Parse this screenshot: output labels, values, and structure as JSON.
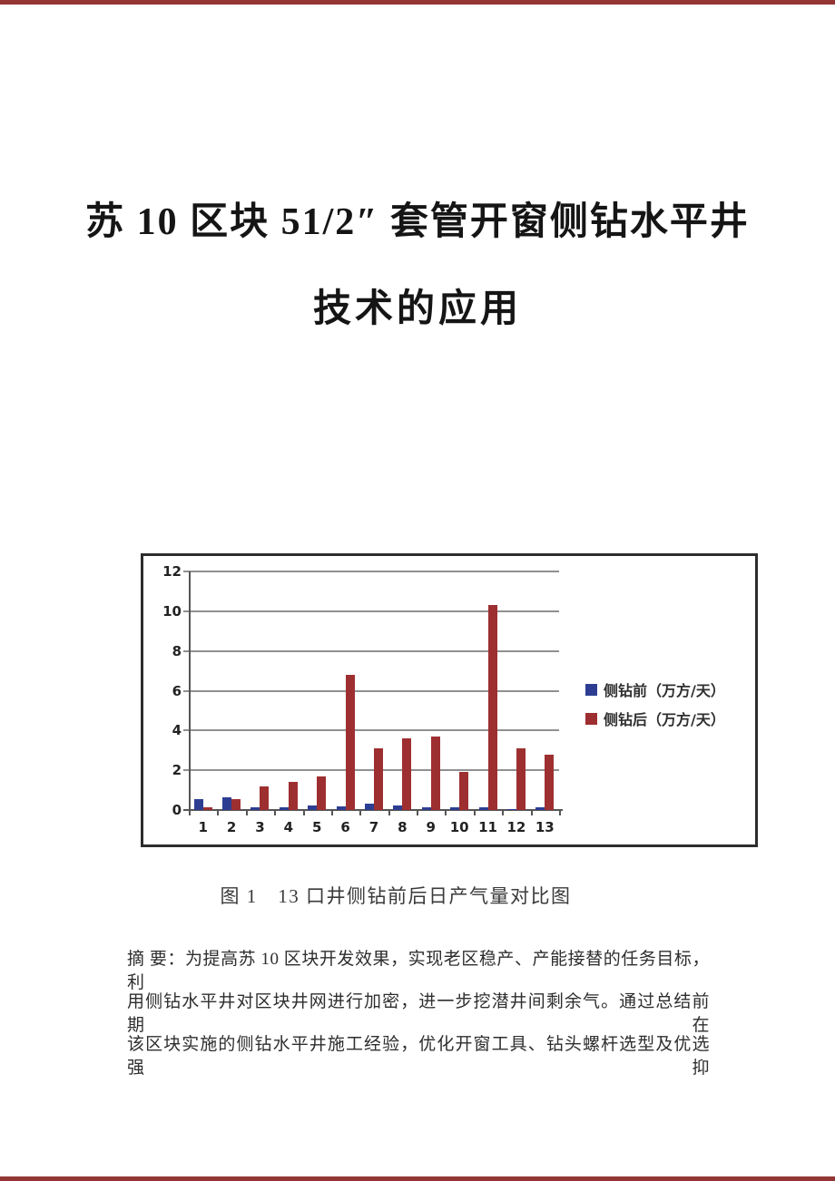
{
  "page": {
    "border_color": "#943634"
  },
  "document": {
    "title_line1": "苏 10 区块 51/2″ 套管开窗侧钻水平井",
    "title_line2": "技术的应用",
    "figure_caption": "图 1　13 口井侧钻前后日产气量对比图",
    "abstract_lines": [
      "摘 要：为提高苏 10 区块开发效果，实现老区稳产、产能接替的任务目标，利",
      "用侧钻水平井对区块井网进行加密，进一步挖潜井间剩余气。通过总结前期在",
      "该区块实施的侧钻水平井施工经验，优化开窗工具、钻头螺杆选型及优选强抑"
    ]
  },
  "chart_data": {
    "type": "bar",
    "categories": [
      "1",
      "2",
      "3",
      "4",
      "5",
      "6",
      "7",
      "8",
      "9",
      "10",
      "11",
      "12",
      "13"
    ],
    "series": [
      {
        "name": "侧钻前（万方/天）",
        "color": "#2d3e92",
        "values": [
          0.55,
          0.65,
          0.12,
          0.12,
          0.22,
          0.2,
          0.3,
          0.25,
          0.12,
          0.12,
          0.12,
          0.05,
          0.12
        ]
      },
      {
        "name": "侧钻后（万方/天）",
        "color": "#9e2f30",
        "values": [
          0.15,
          0.55,
          1.2,
          1.4,
          1.7,
          6.8,
          3.1,
          3.6,
          3.7,
          1.9,
          10.3,
          3.1,
          2.8
        ]
      }
    ],
    "title": "",
    "xlabel": "",
    "ylabel": "",
    "ylim": [
      0,
      12
    ],
    "yticks": [
      0,
      2,
      4,
      6,
      8,
      10,
      12
    ],
    "grid": true,
    "legend_position": "right",
    "colors": {
      "gridline": "#909090",
      "axis": "#555555",
      "tick_label": "#222222"
    }
  }
}
